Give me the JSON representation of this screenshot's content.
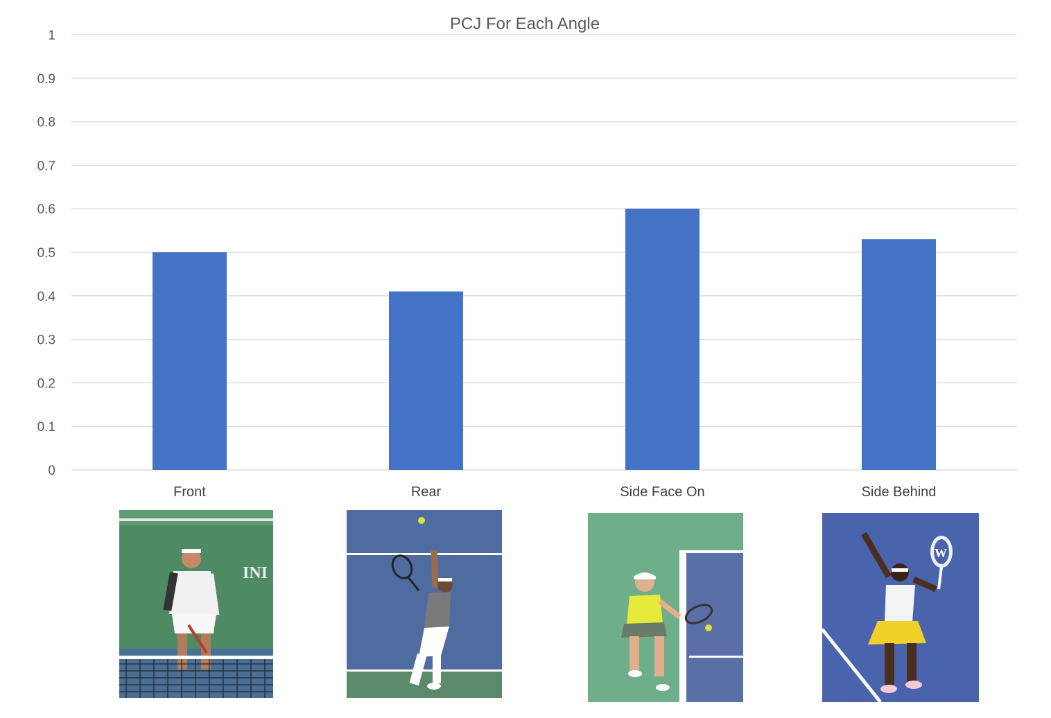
{
  "chart_data": {
    "type": "bar",
    "title": "PCJ For Each Angle",
    "categories": [
      "Front",
      "Rear",
      "Side Face On",
      "Side Behind"
    ],
    "values": [
      0.5,
      0.41,
      0.6,
      0.53
    ],
    "ylim": [
      0,
      1
    ],
    "yticks": [
      "0",
      "0.1",
      "0.2",
      "0.3",
      "0.4",
      "0.5",
      "0.6",
      "0.7",
      "0.8",
      "0.9",
      "1"
    ],
    "xlabel": "",
    "ylabel": "",
    "grid": true,
    "legend": "none",
    "bar_color": "#4472c4"
  },
  "photos": [
    {
      "name": "photo-front",
      "subject": "player-front-view",
      "court": "#4e8a63",
      "floor": "#3f6b8d",
      "banner_text": "INI"
    },
    {
      "name": "photo-rear",
      "subject": "player-rear-view",
      "court": "#4f6ca0",
      "floor": "#5a8a6a",
      "banner_text": ""
    },
    {
      "name": "photo-side-face-on",
      "subject": "player-side-face-on",
      "court": "#6fae8a",
      "floor": "#5a6fa6",
      "banner_text": ""
    },
    {
      "name": "photo-side-behind",
      "subject": "player-side-behind",
      "court": "#4a63ad",
      "floor": "#4a63ad",
      "banner_text": ""
    }
  ]
}
